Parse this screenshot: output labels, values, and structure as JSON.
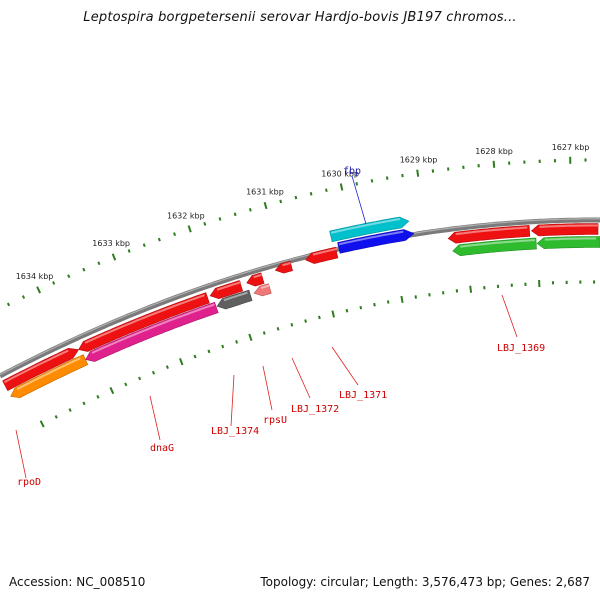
{
  "title": "Leptospira borgpetersenii serovar Hardjo-bovis JB197 chromos...",
  "footer": {
    "accession": "Accession: NC_008510",
    "summary": "Topology: circular; Length: 3,576,473 bp; Genes: 2,687"
  },
  "colors": {
    "backbone": "#7a7a7a",
    "tick": "#2e7d1e",
    "label_red": "#cc0000",
    "label_blue": "#1a1aa6",
    "callout_red": "#dd2222",
    "callout_blue": "#2222cc"
  },
  "scale": {
    "ticks": [
      {
        "label": "1634 kbp"
      },
      {
        "label": "1633 kbp"
      },
      {
        "label": "1632 kbp"
      },
      {
        "label": "1631 kbp"
      },
      {
        "label": "1630 kbp"
      },
      {
        "label": "1629 kbp"
      },
      {
        "label": "1628 kbp"
      },
      {
        "label": "1627 kbp"
      }
    ]
  },
  "genes": [
    {
      "name": "rpoD",
      "color": "#ff8c00",
      "strand": "-"
    },
    {
      "name": "dnaG",
      "color": "#e0208c",
      "strand": "-"
    },
    {
      "name": "LBJ_1374",
      "color": "#606060",
      "strand": "-"
    },
    {
      "name": "rpsU",
      "color": "#f07878",
      "strand": "-"
    },
    {
      "name": "fbp",
      "color": "#00c0cc",
      "strand": "+"
    },
    {
      "name": "LBJ_1369",
      "color": "#2ebc2e",
      "strand": "-"
    }
  ],
  "labels": [
    {
      "text": "fbp",
      "color": "#1a1aa6"
    },
    {
      "text": "rpoD",
      "color": "#cc0000"
    },
    {
      "text": "dnaG",
      "color": "#cc0000"
    },
    {
      "text": "LBJ_1374",
      "color": "#cc0000"
    },
    {
      "text": "rpsU",
      "color": "#cc0000"
    },
    {
      "text": "LBJ_1372",
      "color": "#cc0000"
    },
    {
      "text": "LBJ_1371",
      "color": "#cc0000"
    },
    {
      "text": "LBJ_1369",
      "color": "#cc0000"
    }
  ]
}
